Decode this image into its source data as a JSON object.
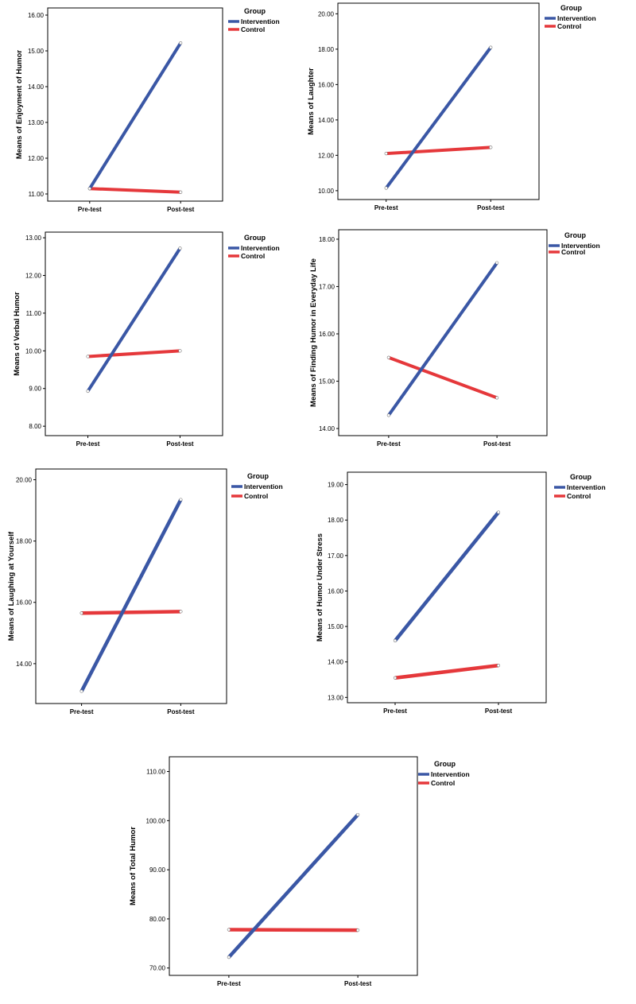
{
  "colors": {
    "intervention": "#3a57a5",
    "control": "#e5383b"
  },
  "legend": {
    "title": "Group",
    "items": [
      "Intervention",
      "Control"
    ]
  },
  "chart_data": [
    {
      "type": "line",
      "ylabel": "Means of Enjoyment of Humor",
      "categories": [
        "Pre-test",
        "Post-test"
      ],
      "yticks": [
        "11.00",
        "12.00",
        "13.00",
        "14.00",
        "15.00",
        "16.00"
      ],
      "ylim": [
        10.8,
        16.2
      ],
      "grid": false,
      "legend_position": "top-right",
      "series": [
        {
          "name": "Intervention",
          "values": [
            11.15,
            15.22
          ]
        },
        {
          "name": "Control",
          "values": [
            11.15,
            11.05
          ]
        }
      ]
    },
    {
      "type": "line",
      "ylabel": "Means of Laughter",
      "categories": [
        "Pre-test",
        "Post-test"
      ],
      "yticks": [
        "10.00",
        "12.00",
        "14.00",
        "16.00",
        "18.00",
        "20.00"
      ],
      "ylim": [
        9.5,
        20.6
      ],
      "grid": false,
      "legend_position": "top-right",
      "series": [
        {
          "name": "Intervention",
          "values": [
            10.15,
            18.1
          ]
        },
        {
          "name": "Control",
          "values": [
            12.1,
            12.45
          ]
        }
      ]
    },
    {
      "type": "line",
      "ylabel": "Means of Verbal Humor",
      "categories": [
        "Pre-test",
        "Post-test"
      ],
      "yticks": [
        "8.00",
        "9.00",
        "10.00",
        "11.00",
        "12.00",
        "13.00"
      ],
      "ylim": [
        7.75,
        13.15
      ],
      "grid": false,
      "legend_position": "top-right",
      "series": [
        {
          "name": "Intervention",
          "values": [
            8.93,
            12.72
          ]
        },
        {
          "name": "Control",
          "values": [
            9.85,
            10.0
          ]
        }
      ]
    },
    {
      "type": "line",
      "ylabel": "Means of Finding Humor in Everyday Life",
      "categories": [
        "Pre-test",
        "Post-test"
      ],
      "yticks": [
        "14.00",
        "15.00",
        "16.00",
        "17.00",
        "18.00"
      ],
      "ylim": [
        13.85,
        18.2
      ],
      "grid": false,
      "legend_position": "top-right",
      "series": [
        {
          "name": "Intervention",
          "values": [
            14.28,
            17.5
          ]
        },
        {
          "name": "Control",
          "values": [
            15.5,
            14.65
          ]
        }
      ]
    },
    {
      "type": "line",
      "ylabel": "Means of Laughing at Yourself",
      "categories": [
        "Pre-test",
        "Post-test"
      ],
      "yticks": [
        "14.00",
        "16.00",
        "18.00",
        "20.00"
      ],
      "ylim": [
        12.7,
        20.35
      ],
      "grid": false,
      "legend_position": "top-right",
      "series": [
        {
          "name": "Intervention",
          "values": [
            13.1,
            19.35
          ]
        },
        {
          "name": "Control",
          "values": [
            15.65,
            15.7
          ]
        }
      ]
    },
    {
      "type": "line",
      "ylabel": "Means of Humor Under Stress",
      "categories": [
        "Pre-test",
        "Post-test"
      ],
      "yticks": [
        "13.00",
        "14.00",
        "15.00",
        "16.00",
        "17.00",
        "18.00",
        "19.00"
      ],
      "ylim": [
        12.85,
        19.35
      ],
      "grid": false,
      "legend_position": "top-right",
      "series": [
        {
          "name": "Intervention",
          "values": [
            14.6,
            18.22
          ]
        },
        {
          "name": "Control",
          "values": [
            13.55,
            13.9
          ]
        }
      ]
    },
    {
      "type": "line",
      "ylabel": "Means of Total Humor",
      "categories": [
        "Pre-test",
        "Post-test"
      ],
      "yticks": [
        "70.00",
        "80.00",
        "90.00",
        "100.00",
        "110.00"
      ],
      "ylim": [
        68.5,
        113.0
      ],
      "grid": false,
      "legend_position": "top-right",
      "series": [
        {
          "name": "Intervention",
          "values": [
            72.2,
            101.2
          ]
        },
        {
          "name": "Control",
          "values": [
            77.8,
            77.7
          ]
        }
      ]
    }
  ]
}
